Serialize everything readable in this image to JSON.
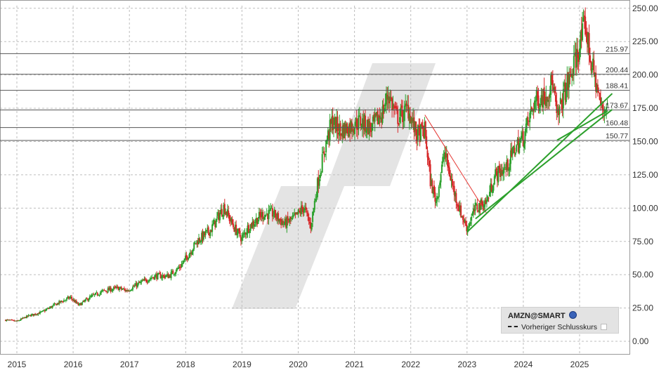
{
  "symbol": "AMZN@SMART",
  "legend_previous_close": "Vorheriger Schlusskurs",
  "chart_data": {
    "type": "candlestick",
    "y_axis_position": "right",
    "ylim": [
      -10,
      252
    ],
    "yticks": [
      0,
      25,
      50,
      75,
      100,
      125,
      150,
      175,
      200,
      225,
      250
    ],
    "ytick_labels": [
      "0.00",
      "25.00",
      "50.00",
      "75.00",
      "100.00",
      "125.00",
      "150.00",
      "175.00",
      "200.00",
      "225.00",
      "250.00"
    ],
    "x_range": [
      2014.8,
      2025.85
    ],
    "xticks": [
      2015,
      2016,
      2017,
      2018,
      2019,
      2020,
      2021,
      2022,
      2023,
      2024,
      2025
    ],
    "xtick_labels": [
      "2015",
      "2016",
      "2017",
      "2018",
      "2019",
      "2020",
      "2021",
      "2022",
      "2023",
      "2024",
      "2025"
    ],
    "grid": true,
    "horizontal_levels": [
      {
        "value": 215.97,
        "label": "215.97"
      },
      {
        "value": 200.44,
        "label": "200.44"
      },
      {
        "value": 188.41,
        "label": "188.41"
      },
      {
        "value": 173.67,
        "label": "173.67"
      },
      {
        "value": 160.48,
        "label": "160.48"
      },
      {
        "value": 150.77,
        "label": "150.77"
      }
    ],
    "trendlines": [
      {
        "color": "#e53935",
        "points": [
          [
            2022.25,
            170
          ],
          [
            2023.35,
            96
          ]
        ]
      },
      {
        "color": "#2ca02c",
        "points": [
          [
            2023.0,
            82
          ],
          [
            2025.58,
            186
          ]
        ]
      },
      {
        "color": "#2ca02c",
        "points": [
          [
            2023.15,
            92
          ],
          [
            2025.58,
            174
          ]
        ]
      },
      {
        "color": "#2ca02c",
        "points": [
          [
            2024.6,
            151
          ],
          [
            2025.5,
            173
          ]
        ]
      }
    ],
    "price_path": [
      [
        2014.8,
        16
      ],
      [
        2015.0,
        15
      ],
      [
        2015.2,
        19
      ],
      [
        2015.45,
        22
      ],
      [
        2015.7,
        28
      ],
      [
        2015.95,
        33
      ],
      [
        2016.1,
        27
      ],
      [
        2016.3,
        33
      ],
      [
        2016.55,
        38
      ],
      [
        2016.8,
        40
      ],
      [
        2016.95,
        38
      ],
      [
        2017.2,
        44
      ],
      [
        2017.45,
        49
      ],
      [
        2017.7,
        49
      ],
      [
        2017.9,
        56
      ],
      [
        2018.0,
        62
      ],
      [
        2018.2,
        75
      ],
      [
        2018.45,
        84
      ],
      [
        2018.68,
        101
      ],
      [
        2018.85,
        86
      ],
      [
        2019.0,
        77
      ],
      [
        2019.1,
        85
      ],
      [
        2019.35,
        95
      ],
      [
        2019.55,
        96
      ],
      [
        2019.75,
        88
      ],
      [
        2019.95,
        93
      ],
      [
        2020.1,
        101
      ],
      [
        2020.22,
        86
      ],
      [
        2020.35,
        120
      ],
      [
        2020.5,
        150
      ],
      [
        2020.6,
        165
      ],
      [
        2020.75,
        158
      ],
      [
        2020.95,
        162
      ],
      [
        2021.1,
        165
      ],
      [
        2021.3,
        160
      ],
      [
        2021.5,
        172
      ],
      [
        2021.6,
        186
      ],
      [
        2021.75,
        168
      ],
      [
        2021.85,
        170
      ],
      [
        2021.95,
        175
      ],
      [
        2022.1,
        155
      ],
      [
        2022.25,
        158
      ],
      [
        2022.35,
        120
      ],
      [
        2022.45,
        105
      ],
      [
        2022.6,
        142
      ],
      [
        2022.75,
        115
      ],
      [
        2022.9,
        95
      ],
      [
        2023.0,
        85
      ],
      [
        2023.15,
        100
      ],
      [
        2023.35,
        105
      ],
      [
        2023.5,
        125
      ],
      [
        2023.7,
        130
      ],
      [
        2023.85,
        145
      ],
      [
        2024.0,
        153
      ],
      [
        2024.2,
        180
      ],
      [
        2024.4,
        185
      ],
      [
        2024.52,
        195
      ],
      [
        2024.6,
        166
      ],
      [
        2024.72,
        186
      ],
      [
        2024.85,
        200
      ],
      [
        2025.0,
        222
      ],
      [
        2025.1,
        238
      ],
      [
        2025.2,
        210
      ],
      [
        2025.3,
        192
      ],
      [
        2025.4,
        172
      ],
      [
        2025.5,
        180
      ]
    ]
  },
  "colors": {
    "up": "#2ca02c",
    "down": "#d62728",
    "grid": "#bdbdbd",
    "level_line": "#555555",
    "watermark": "#e4e4e4"
  }
}
